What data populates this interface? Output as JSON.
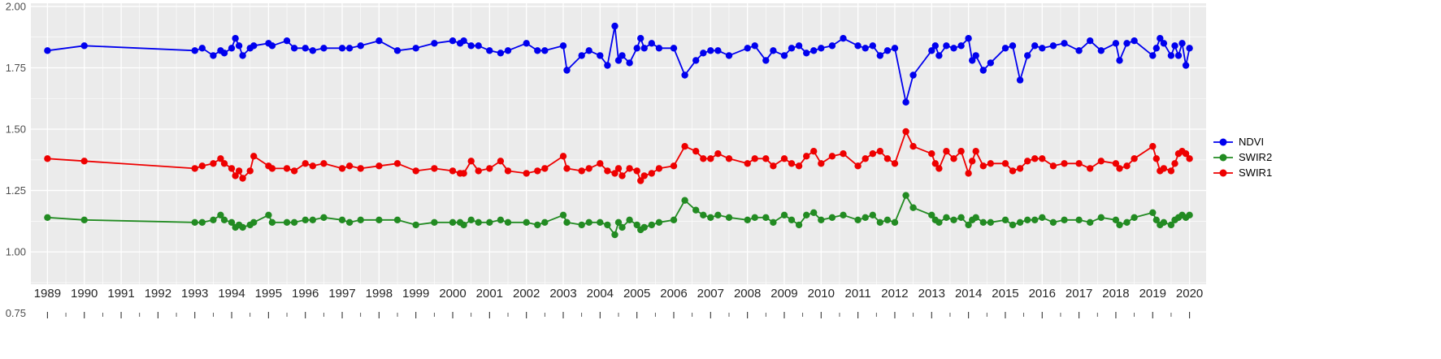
{
  "chart_data": {
    "type": "line",
    "title": "",
    "xlabel": "",
    "ylabel": "",
    "xlim": [
      1988.55,
      2020.45
    ],
    "ylim": [
      0.868,
      2.013
    ],
    "grid": true,
    "legend_position": "right",
    "x_ticks": [
      1989,
      1990,
      1991,
      1992,
      1993,
      1994,
      1995,
      1996,
      1997,
      1998,
      1999,
      2000,
      2001,
      2002,
      2003,
      2004,
      2005,
      2006,
      2007,
      2008,
      2009,
      2010,
      2011,
      2012,
      2013,
      2014,
      2015,
      2016,
      2017,
      2018,
      2019,
      2020
    ],
    "y_ticks": [
      2.0,
      1.75,
      1.5,
      1.25,
      1.0,
      0.75
    ],
    "y_tick_labels": [
      "2.00",
      "1.75",
      "1.50",
      "1.25",
      "1.00",
      "0.75"
    ],
    "minor_y_ticks": [
      1.875,
      1.625,
      1.375,
      1.125,
      0.875
    ],
    "style": {
      "panel_bg": "#EBEBEB",
      "grid_color": "#FFFFFF",
      "axis_text_color": "#4D4D4D",
      "x_label_color": "#262626",
      "tick_color": "#333333",
      "point_radius": 4.2,
      "line_width": 1.8
    },
    "x": [
      1989.0,
      1990.0,
      1993.0,
      1993.2,
      1993.5,
      1993.7,
      1993.8,
      1994.0,
      1994.1,
      1994.2,
      1994.3,
      1994.5,
      1994.6,
      1995.0,
      1995.1,
      1995.5,
      1995.7,
      1996.0,
      1996.2,
      1996.5,
      1997.0,
      1997.2,
      1997.5,
      1998.0,
      1998.5,
      1999.0,
      1999.5,
      2000.0,
      2000.2,
      2000.3,
      2000.5,
      2000.7,
      2001.0,
      2001.3,
      2001.5,
      2002.0,
      2002.3,
      2002.5,
      2003.0,
      2003.1,
      2003.5,
      2003.7,
      2004.0,
      2004.2,
      2004.4,
      2004.5,
      2004.6,
      2004.8,
      2005.0,
      2005.1,
      2005.2,
      2005.4,
      2005.6,
      2006.0,
      2006.3,
      2006.6,
      2006.8,
      2007.0,
      2007.2,
      2007.5,
      2008.0,
      2008.2,
      2008.5,
      2008.7,
      2009.0,
      2009.2,
      2009.4,
      2009.6,
      2009.8,
      2010.0,
      2010.3,
      2010.6,
      2011.0,
      2011.2,
      2011.4,
      2011.6,
      2011.8,
      2012.0,
      2012.3,
      2012.5,
      2013.0,
      2013.1,
      2013.2,
      2013.4,
      2013.6,
      2013.8,
      2014.0,
      2014.1,
      2014.2,
      2014.4,
      2014.6,
      2015.0,
      2015.2,
      2015.4,
      2015.6,
      2015.8,
      2016.0,
      2016.3,
      2016.6,
      2017.0,
      2017.3,
      2017.6,
      2018.0,
      2018.1,
      2018.3,
      2018.5,
      2019.0,
      2019.1,
      2019.2,
      2019.3,
      2019.5,
      2019.6,
      2019.7,
      2019.8,
      2019.9,
      2020.0
    ],
    "series": [
      {
        "name": "NDVI",
        "color": "#0000EE",
        "values": [
          1.82,
          1.84,
          1.82,
          1.83,
          1.8,
          1.82,
          1.81,
          1.83,
          1.87,
          1.84,
          1.8,
          1.83,
          1.84,
          1.85,
          1.84,
          1.86,
          1.83,
          1.83,
          1.82,
          1.83,
          1.83,
          1.83,
          1.84,
          1.86,
          1.82,
          1.83,
          1.85,
          1.86,
          1.85,
          1.86,
          1.84,
          1.84,
          1.82,
          1.81,
          1.82,
          1.85,
          1.82,
          1.82,
          1.84,
          1.74,
          1.8,
          1.82,
          1.8,
          1.76,
          1.92,
          1.78,
          1.8,
          1.77,
          1.83,
          1.87,
          1.83,
          1.85,
          1.83,
          1.83,
          1.72,
          1.78,
          1.81,
          1.82,
          1.82,
          1.8,
          1.83,
          1.84,
          1.78,
          1.82,
          1.8,
          1.83,
          1.84,
          1.81,
          1.82,
          1.83,
          1.84,
          1.87,
          1.84,
          1.83,
          1.84,
          1.8,
          1.82,
          1.83,
          1.61,
          1.72,
          1.82,
          1.84,
          1.8,
          1.84,
          1.83,
          1.84,
          1.87,
          1.78,
          1.8,
          1.74,
          1.77,
          1.83,
          1.84,
          1.7,
          1.8,
          1.84,
          1.83,
          1.84,
          1.85,
          1.82,
          1.86,
          1.82,
          1.85,
          1.78,
          1.85,
          1.86,
          1.8,
          1.83,
          1.87,
          1.85,
          1.8,
          1.84,
          1.8,
          1.85,
          1.76,
          1.83
        ]
      },
      {
        "name": "SWIR2",
        "color": "#228B22",
        "values": [
          1.14,
          1.13,
          1.12,
          1.12,
          1.13,
          1.15,
          1.13,
          1.12,
          1.1,
          1.11,
          1.1,
          1.11,
          1.12,
          1.15,
          1.12,
          1.12,
          1.12,
          1.13,
          1.13,
          1.14,
          1.13,
          1.12,
          1.13,
          1.13,
          1.13,
          1.11,
          1.12,
          1.12,
          1.12,
          1.11,
          1.13,
          1.12,
          1.12,
          1.13,
          1.12,
          1.12,
          1.11,
          1.12,
          1.15,
          1.12,
          1.11,
          1.12,
          1.12,
          1.11,
          1.07,
          1.12,
          1.1,
          1.13,
          1.11,
          1.09,
          1.1,
          1.11,
          1.12,
          1.13,
          1.21,
          1.17,
          1.15,
          1.14,
          1.15,
          1.14,
          1.13,
          1.14,
          1.14,
          1.12,
          1.15,
          1.13,
          1.11,
          1.15,
          1.16,
          1.13,
          1.14,
          1.15,
          1.13,
          1.14,
          1.15,
          1.12,
          1.13,
          1.12,
          1.23,
          1.18,
          1.15,
          1.13,
          1.12,
          1.14,
          1.13,
          1.14,
          1.11,
          1.13,
          1.14,
          1.12,
          1.12,
          1.13,
          1.11,
          1.12,
          1.13,
          1.13,
          1.14,
          1.12,
          1.13,
          1.13,
          1.12,
          1.14,
          1.13,
          1.11,
          1.12,
          1.14,
          1.16,
          1.13,
          1.11,
          1.12,
          1.11,
          1.13,
          1.14,
          1.15,
          1.14,
          1.15
        ]
      },
      {
        "name": "SWIR1",
        "color": "#EE0000",
        "values": [
          1.38,
          1.37,
          1.34,
          1.35,
          1.36,
          1.38,
          1.36,
          1.34,
          1.31,
          1.33,
          1.3,
          1.33,
          1.39,
          1.35,
          1.34,
          1.34,
          1.33,
          1.36,
          1.35,
          1.36,
          1.34,
          1.35,
          1.34,
          1.35,
          1.36,
          1.33,
          1.34,
          1.33,
          1.32,
          1.32,
          1.37,
          1.33,
          1.34,
          1.37,
          1.33,
          1.32,
          1.33,
          1.34,
          1.39,
          1.34,
          1.33,
          1.34,
          1.36,
          1.33,
          1.32,
          1.34,
          1.31,
          1.34,
          1.33,
          1.29,
          1.31,
          1.32,
          1.34,
          1.35,
          1.43,
          1.41,
          1.38,
          1.38,
          1.4,
          1.38,
          1.36,
          1.38,
          1.38,
          1.35,
          1.38,
          1.36,
          1.35,
          1.39,
          1.41,
          1.36,
          1.39,
          1.4,
          1.35,
          1.38,
          1.4,
          1.41,
          1.38,
          1.36,
          1.49,
          1.43,
          1.4,
          1.36,
          1.34,
          1.41,
          1.38,
          1.41,
          1.32,
          1.37,
          1.41,
          1.35,
          1.36,
          1.36,
          1.33,
          1.34,
          1.37,
          1.38,
          1.38,
          1.35,
          1.36,
          1.36,
          1.34,
          1.37,
          1.36,
          1.34,
          1.35,
          1.38,
          1.43,
          1.38,
          1.33,
          1.34,
          1.33,
          1.36,
          1.4,
          1.41,
          1.4,
          1.38
        ]
      }
    ]
  },
  "legend": {
    "items": [
      {
        "label": "NDVI",
        "color": "#0000EE"
      },
      {
        "label": "SWIR2",
        "color": "#228B22"
      },
      {
        "label": "SWIR1",
        "color": "#EE0000"
      }
    ]
  }
}
